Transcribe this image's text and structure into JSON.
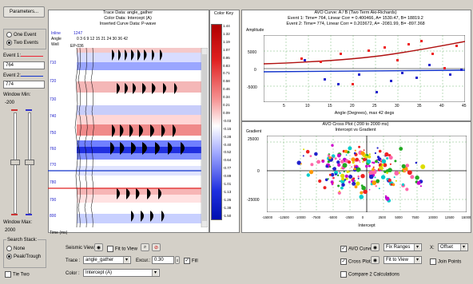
{
  "left": {
    "parameters_button": "Parameters...",
    "one_event": "One Event",
    "two_events": "Two Events",
    "event1_label": "Event 1:",
    "event1_value": "764",
    "event2_label": "Event 2:",
    "event2_value": "774",
    "window_min_label": "Window Min:",
    "window_min_value": "-200",
    "window_max_label": "Window Max:",
    "window_max_value": "2000"
  },
  "seismic": {
    "title1": "Trace Data: angle_gather",
    "title2": "Color Data: Intercept (A)",
    "title3": "Inserted Curve Data: P-wave",
    "inline_label": "Inline",
    "inline_value": "1247",
    "angle_label": "Angle",
    "angle_values": "0  3  6  9 12 15   21 24     30    36    42",
    "well_label": "Well",
    "well_value": "EP-036",
    "time_labels": [
      "710",
      "720",
      "730",
      "740",
      "750",
      "760",
      "770",
      "780",
      "790",
      "800"
    ],
    "time_axis_label": "Time (ms)"
  },
  "colorkey": {
    "title": "Color Key",
    "values": [
      "1.44",
      "1.32",
      "1.19",
      "1.07",
      "0.95",
      "0.83",
      "0.71",
      "0.58",
      "0.46",
      "0.34",
      "0.21",
      "0.09",
      "-0.03",
      "-0.15",
      "-0.28",
      "-0.40",
      "-0.52",
      "-0.64",
      "-0.77",
      "-0.89",
      "-1.01",
      "-1.13",
      "-1.26",
      "-1.38",
      "-1.50"
    ]
  },
  "avo": {
    "title1": "AVO Curve: A / B (Two Term Aki-Richards)",
    "title2": "Event 1: Time= 764, Linear Corr = 0.400466, A=  1530.47, B=  18819.2",
    "title3": "Event 2: Time= 774, Linear Corr = 0.203672, A= -2081.99, B= -897.368",
    "y_label": "Amplitude",
    "x_label": "Angle (Degrees), max 42 degs",
    "y_ticks": [
      "5000",
      "0",
      "-5000"
    ],
    "x_ticks": [
      "5",
      "10",
      "15",
      "20",
      "25",
      "30",
      "35",
      "40",
      "45"
    ]
  },
  "cross": {
    "title1": "AVO Cross Plot (-200 to 2000 ms)",
    "title2": "Intercept vs Gradient",
    "y_label": "Gradient",
    "x_label": "Intercept",
    "y_ticks": [
      "25000",
      "0",
      "-25000"
    ],
    "x_ticks": [
      "-15000",
      "-12500",
      "-10000",
      "-7500",
      "-5000",
      "-2500",
      "0",
      "2500",
      "5000",
      "7500",
      "10000",
      "12500",
      "15000"
    ]
  },
  "bottom": {
    "search_stack": "Search Stack:",
    "none": "None",
    "peak_trough": "Peak/Trough",
    "tie_two": "Tie Two",
    "seismic_view": "Seismic View",
    "fit_to_view": "Fit to View",
    "trace_label": "Trace :",
    "trace_value": "angle_gather",
    "excur_label": "Excur.:",
    "excur_value": "0.30",
    "fill_label": "Fill",
    "color_label": "Color :",
    "color_value": "Intercept (A)",
    "avo_curves": "AVO Curves",
    "fix_ranges": "Fix Ranges",
    "x_label": "X:",
    "x_value": "Offset",
    "cross_plot": "Cross Plot",
    "fit_to_view2": "Fit to View",
    "join_points": "Join Points",
    "compare": "Compare 2 Calculations"
  }
}
